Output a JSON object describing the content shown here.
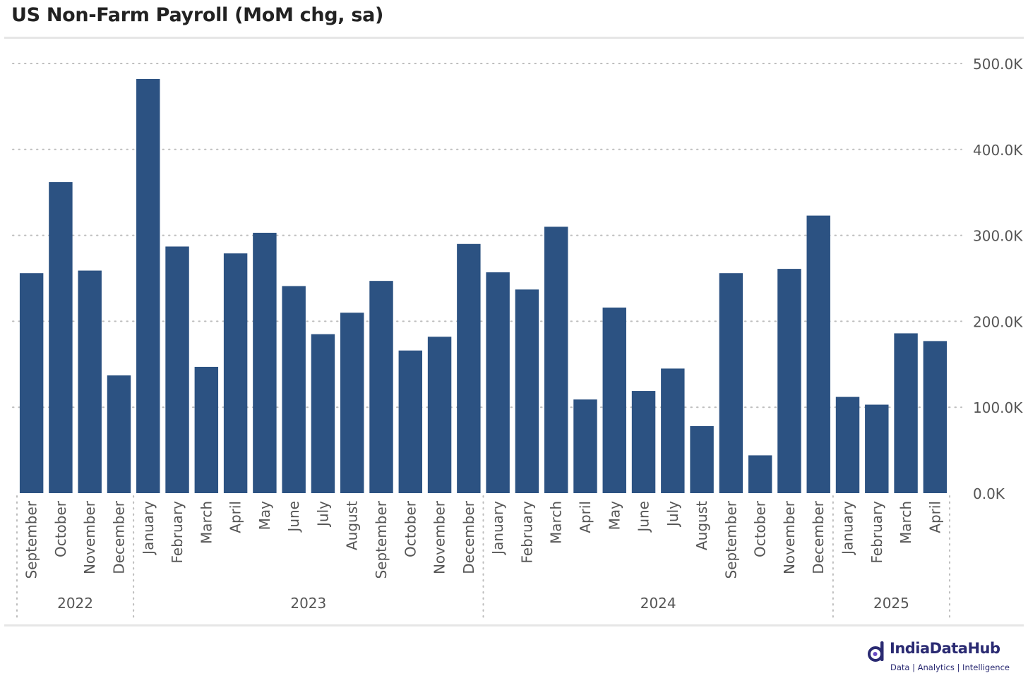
{
  "header": {
    "title": "US Non-Farm Payroll (MoM chg, sa)"
  },
  "brand": {
    "name": "IndiaDataHub",
    "tagline": "Data | Analytics | Intelligence",
    "color": "#2a2a72"
  },
  "chart_data": {
    "type": "bar",
    "bar_color": "#2c5282",
    "categories": [
      "September",
      "October",
      "November",
      "December",
      "January",
      "February",
      "March",
      "April",
      "May",
      "June",
      "July",
      "August",
      "September",
      "October",
      "November",
      "December",
      "January",
      "February",
      "March",
      "April",
      "May",
      "June",
      "July",
      "August",
      "September",
      "October",
      "November",
      "December",
      "January",
      "February",
      "March",
      "April"
    ],
    "values": [
      256,
      362,
      259,
      137,
      482,
      287,
      147,
      279,
      303,
      241,
      185,
      210,
      247,
      166,
      182,
      290,
      257,
      237,
      310,
      109,
      216,
      119,
      145,
      78,
      256,
      44,
      261,
      323,
      112,
      103,
      186,
      177
    ],
    "year_groups": [
      {
        "label": "2022",
        "count": 4
      },
      {
        "label": "2023",
        "count": 12
      },
      {
        "label": "2024",
        "count": 12
      },
      {
        "label": "2025",
        "count": 4
      }
    ],
    "y_ticks": [
      {
        "value": 0,
        "label": "0.0K"
      },
      {
        "value": 100,
        "label": "100.0K"
      },
      {
        "value": 200,
        "label": "200.0K"
      },
      {
        "value": 300,
        "label": "300.0K"
      },
      {
        "value": 400,
        "label": "400.0K"
      },
      {
        "value": 500,
        "label": "500.0K"
      }
    ],
    "ylim": [
      0,
      500
    ],
    "y_axis_position": "right",
    "grid": true
  }
}
